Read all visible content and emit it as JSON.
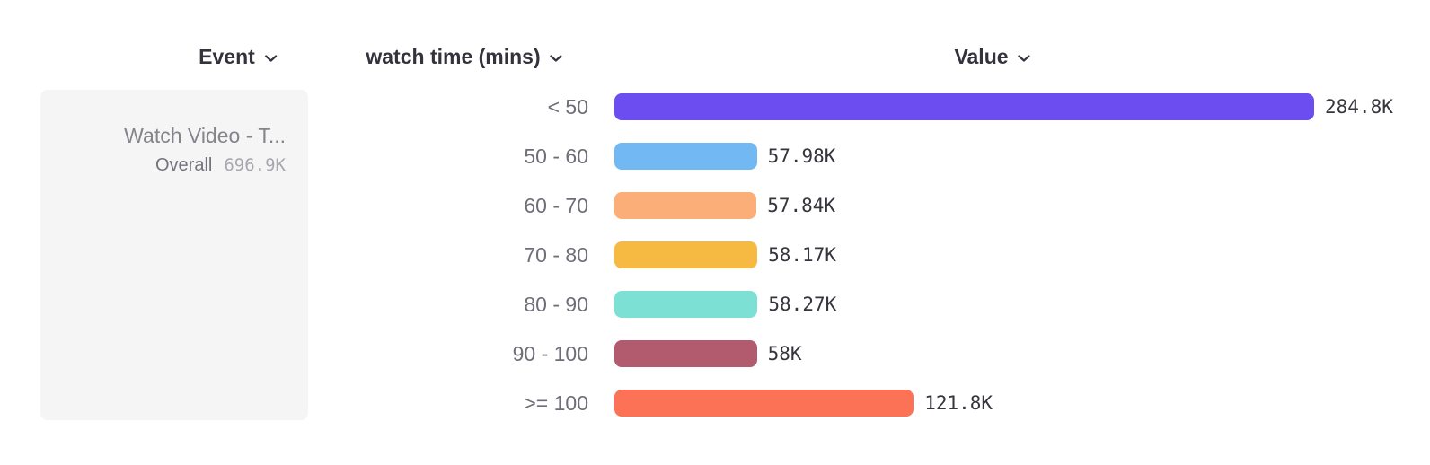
{
  "header": {
    "columns": [
      {
        "label": "Event"
      },
      {
        "label": "watch time (mins)"
      },
      {
        "label": "Value"
      }
    ]
  },
  "event_card": {
    "title": "Watch Video - T...",
    "overall_label": "Overall",
    "overall_value": "696.9K"
  },
  "chart_data": {
    "type": "bar",
    "orientation": "horizontal",
    "title": "",
    "xlabel": "Value",
    "ylabel": "watch time (mins)",
    "categories": [
      "< 50",
      "50 - 60",
      "60 - 70",
      "70 - 80",
      "80 - 90",
      "90 - 100",
      ">= 100"
    ],
    "values": [
      284800,
      57980,
      57840,
      58170,
      58270,
      58000,
      121800
    ],
    "value_labels": [
      "284.8K",
      "57.98K",
      "57.84K",
      "58.17K",
      "58.27K",
      "58K",
      "121.8K"
    ],
    "bar_colors": [
      "#6c4ef0",
      "#72b8f2",
      "#fcae78",
      "#f6ba43",
      "#7de0d4",
      "#b25a6e",
      "#fc7257"
    ],
    "xlim": [
      0,
      290000
    ],
    "grid": false,
    "legend": "none"
  },
  "colors": {
    "header_text": "#33333d",
    "category_text": "#6e6e78",
    "value_text": "#35353d",
    "card_bg": "#f5f5f6",
    "card_title_text": "#84848c",
    "overall_value_text": "#a7a7af"
  }
}
